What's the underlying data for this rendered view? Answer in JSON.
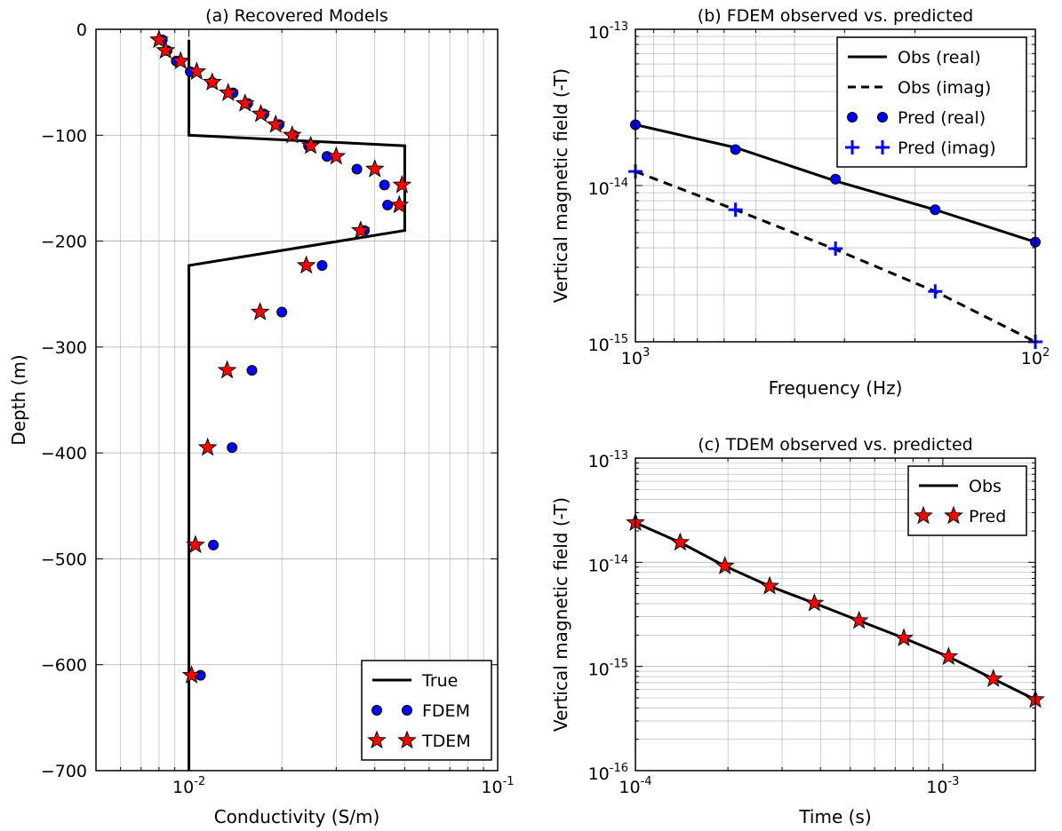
{
  "colors": {
    "true_line": "#000000",
    "fdem_marker": "#0000ff",
    "tdem_marker": "#ff0000",
    "marker_edge": "#000000",
    "pred_imag": "#0000ff",
    "grid": "#b0b0b0"
  },
  "chart_data": [
    {
      "id": "a",
      "type": "line",
      "title": "(a) Recovered Models",
      "xlabel": "Conductivity (S/m)",
      "ylabel": "Depth (m)",
      "xscale": "log",
      "xlim": [
        0.005,
        0.1
      ],
      "ylim": [
        -700,
        0
      ],
      "grid": true,
      "x_tick_labels": [
        {
          "base": "10",
          "exp": "-2",
          "value": 0.01
        },
        {
          "base": "10",
          "exp": "-1",
          "value": 0.1
        }
      ],
      "y_tick_labels": [
        {
          "text": "0",
          "value": 0
        },
        {
          "text": "−100",
          "value": -100
        },
        {
          "text": "−200",
          "value": -200
        },
        {
          "text": "−300",
          "value": -300
        },
        {
          "text": "−400",
          "value": -400
        },
        {
          "text": "−500",
          "value": -500
        },
        {
          "text": "−600",
          "value": -600
        },
        {
          "text": "−700",
          "value": -700
        }
      ],
      "legend": {
        "position": "lower-right",
        "entries": [
          "True",
          "FDEM",
          "TDEM"
        ]
      },
      "series": [
        {
          "name": "True",
          "style": "line",
          "x": [
            0.01,
            0.01,
            0.05,
            0.05,
            0.01,
            0.01
          ],
          "y": [
            -10,
            -100,
            -110,
            -190,
            -223,
            -700
          ]
        },
        {
          "name": "FDEM",
          "style": "circle",
          "x": [
            0.0082,
            0.0085,
            0.0091,
            0.0101,
            0.0119,
            0.0139,
            0.0155,
            0.0175,
            0.0196,
            0.0218,
            0.0244,
            0.028,
            0.035,
            0.043,
            0.044,
            0.037,
            0.027,
            0.02,
            0.016,
            0.0138,
            0.012,
            0.0109
          ],
          "y": [
            -10,
            -20,
            -30,
            -40,
            -50,
            -60,
            -70,
            -80,
            -90,
            -100,
            -110,
            -120,
            -132,
            -147,
            -166,
            -190,
            -223,
            -267,
            -322,
            -395,
            -487,
            -610
          ]
        },
        {
          "name": "TDEM",
          "style": "star",
          "x": [
            0.008,
            0.0084,
            0.0094,
            0.0106,
            0.0119,
            0.0134,
            0.0152,
            0.0171,
            0.0191,
            0.0216,
            0.0248,
            0.03,
            0.04,
            0.049,
            0.048,
            0.036,
            0.024,
            0.017,
            0.0133,
            0.0115,
            0.0105,
            0.0102
          ],
          "y": [
            -10,
            -20,
            -30,
            -40,
            -50,
            -60,
            -70,
            -80,
            -90,
            -100,
            -110,
            -120,
            -132,
            -147,
            -166,
            -190,
            -223,
            -267,
            -322,
            -395,
            -487,
            -610
          ]
        }
      ]
    },
    {
      "id": "b",
      "type": "line",
      "title": "(b) FDEM observed vs. predicted",
      "xlabel": "Frequency (Hz)",
      "ylabel": "Vertical magnetic field (-T)",
      "xscale": "log",
      "yscale": "log",
      "xlim": [
        1000,
        100
      ],
      "ylim": [
        1e-15,
        1e-13
      ],
      "grid": true,
      "x_tick_labels": [
        {
          "base": "10",
          "exp": "3",
          "value": 1000
        },
        {
          "base": "10",
          "exp": "2",
          "value": 100
        }
      ],
      "y_tick_labels": [
        {
          "base": "10",
          "exp": "-13",
          "value": 1e-13
        },
        {
          "base": "10",
          "exp": "-14",
          "value": 1e-14
        },
        {
          "base": "10",
          "exp": "-15",
          "value": 1e-15
        }
      ],
      "legend": {
        "position": "top-right",
        "entries": [
          "Obs (real)",
          "Obs (imag)",
          "Pred (real)",
          "Pred (imag)"
        ]
      },
      "series": [
        {
          "name": "Obs (real)",
          "style": "line",
          "x": [
            1000,
            562,
            316,
            178,
            100
          ],
          "y": [
            2.45e-14,
            1.75e-14,
            1.07e-14,
            7e-15,
            4.35e-15
          ]
        },
        {
          "name": "Obs (imag)",
          "style": "dashed",
          "x": [
            1000,
            562,
            316,
            178,
            100
          ],
          "y": [
            1.23e-14,
            7e-15,
            3.9e-15,
            2.1e-15,
            1e-15
          ]
        },
        {
          "name": "Pred (real)",
          "style": "circle",
          "x": [
            1000,
            562,
            316,
            178,
            100
          ],
          "y": [
            2.45e-14,
            1.7e-14,
            1.1e-14,
            7e-15,
            4.35e-15
          ]
        },
        {
          "name": "Pred (imag)",
          "style": "plus",
          "x": [
            1000,
            562,
            316,
            178,
            100
          ],
          "y": [
            1.23e-14,
            7e-15,
            3.95e-15,
            2.1e-15,
            1e-15
          ]
        }
      ]
    },
    {
      "id": "c",
      "type": "line",
      "title": "(c) TDEM observed vs. predicted",
      "xlabel": "Time (s)",
      "ylabel": "Vertical magnetic field (-T)",
      "xscale": "log",
      "yscale": "log",
      "xlim": [
        0.0001,
        0.002
      ],
      "ylim": [
        1e-16,
        1e-13
      ],
      "grid": true,
      "x_tick_labels": [
        {
          "base": "10",
          "exp": "-4",
          "value": 0.0001
        },
        {
          "base": "10",
          "exp": "-3",
          "value": 0.001
        }
      ],
      "y_tick_labels": [
        {
          "base": "10",
          "exp": "-13",
          "value": 1e-13
        },
        {
          "base": "10",
          "exp": "-14",
          "value": 1e-14
        },
        {
          "base": "10",
          "exp": "-15",
          "value": 1e-15
        },
        {
          "base": "10",
          "exp": "-16",
          "value": 1e-16
        }
      ],
      "legend": {
        "position": "top-right",
        "entries": [
          "Obs",
          "Pred"
        ]
      },
      "series": [
        {
          "name": "Obs",
          "style": "line",
          "x": [
            0.0001,
            0.0001398,
            0.0001955,
            0.0002733,
            0.0003821,
            0.0005342,
            0.0007469,
            0.0010443,
            0.0014602,
            0.002
          ],
          "y": [
            2.4e-14,
            1.55e-14,
            9.2e-15,
            5.9e-15,
            4.05e-15,
            2.75e-15,
            1.87e-15,
            1.24e-15,
            7.6e-16,
            4.8e-16
          ]
        },
        {
          "name": "Pred",
          "style": "star",
          "x": [
            0.0001,
            0.0001398,
            0.0001955,
            0.0002733,
            0.0003821,
            0.0005342,
            0.0007469,
            0.0010443,
            0.0014602,
            0.002
          ],
          "y": [
            2.4e-14,
            1.55e-14,
            9.2e-15,
            5.9e-15,
            4.05e-15,
            2.75e-15,
            1.87e-15,
            1.24e-15,
            7.6e-16,
            4.8e-16
          ]
        }
      ]
    }
  ]
}
